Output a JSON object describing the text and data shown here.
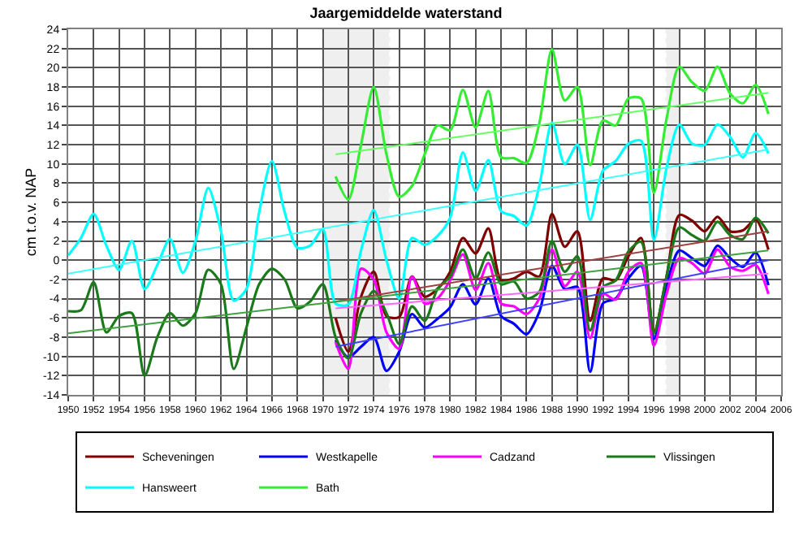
{
  "chart_data": {
    "type": "line",
    "title": "Jaargemiddelde waterstand",
    "ylabel": "cm t.o.v. NAP",
    "xlim": [
      1950,
      2006
    ],
    "xticks": [
      1950,
      1952,
      1954,
      1956,
      1958,
      1960,
      1962,
      1964,
      1966,
      1968,
      1970,
      1972,
      1974,
      1976,
      1978,
      1980,
      1982,
      1984,
      1986,
      1988,
      1990,
      1992,
      1994,
      1996,
      1998,
      2000,
      2002,
      2004,
      2006
    ],
    "ylim": [
      -14,
      24
    ],
    "yticks": [
      -14,
      -12,
      -10,
      -8,
      -6,
      -4,
      -2,
      0,
      2,
      4,
      6,
      8,
      10,
      12,
      14,
      16,
      18,
      20,
      22,
      24
    ],
    "grid": true,
    "legend": "bottom",
    "marker": "none",
    "line_style": "solid",
    "bands": [
      {
        "axis": "x",
        "from": 1970,
        "to": 1975.2,
        "color": "#808080"
      },
      {
        "axis": "x",
        "from": 1997,
        "to": 1998,
        "color": "#808080"
      }
    ],
    "series": [
      {
        "name": "Scheveningen",
        "color": "#800000",
        "x": [
          1971,
          1972,
          1973,
          1974,
          1975,
          1976,
          1977,
          1978,
          1979,
          1980,
          1981,
          1982,
          1983,
          1984,
          1985,
          1986,
          1987,
          1988,
          1989,
          1990,
          1991,
          1992,
          1993,
          1994,
          1995,
          1996,
          1997,
          1998,
          1999,
          2000,
          2001,
          2002,
          2003,
          2004,
          2005
        ],
        "values": [
          -6,
          -9.5,
          -3.8,
          -1.2,
          -5.8,
          -5.9,
          -1.7,
          -3.8,
          -3,
          -1.2,
          2.3,
          0.7,
          3.3,
          -2.1,
          -1.9,
          -1.2,
          -1.7,
          4.8,
          1.4,
          3,
          -6.3,
          -1.9,
          -2.1,
          0.4,
          2.3,
          -7.5,
          -1.7,
          4.7,
          4.1,
          3,
          4.5,
          3,
          3.1,
          4.2,
          1.1
        ]
      },
      {
        "name": "Westkapelle",
        "color": "#0000ff",
        "x": [
          1971,
          1972,
          1973,
          1974,
          1975,
          1976,
          1977,
          1978,
          1979,
          1980,
          1981,
          1982,
          1983,
          1984,
          1985,
          1986,
          1987,
          1988,
          1989,
          1990,
          1991,
          1992,
          1993,
          1994,
          1995,
          1996,
          1997,
          1998,
          1999,
          2000,
          2001,
          2002,
          2003,
          2004,
          2005
        ],
        "values": [
          -8.3,
          -10.1,
          -9,
          -8,
          -11.5,
          -9.5,
          -5.6,
          -7,
          -6.1,
          -4.9,
          -2.5,
          -4.6,
          -1.9,
          -5.8,
          -6.6,
          -7.7,
          -5.4,
          -0.6,
          -3,
          -2.8,
          -11.6,
          -4.5,
          -4,
          -1.9,
          -0.6,
          -8.2,
          -2.6,
          1,
          0.2,
          -0.6,
          1.5,
          0.2,
          -0.7,
          0.8,
          -2.6
        ]
      },
      {
        "name": "Cadzand",
        "color": "#ff00ff",
        "x": [
          1971,
          1972,
          1973,
          1974,
          1975,
          1976,
          1977,
          1978,
          1979,
          1980,
          1981,
          1982,
          1983,
          1984,
          1985,
          1986,
          1987,
          1988,
          1989,
          1990,
          1991,
          1992,
          1993,
          1994,
          1995,
          1996,
          1997,
          1998,
          1999,
          2000,
          2001,
          2002,
          2003,
          2004,
          2005
        ],
        "values": [
          -8.5,
          -11.3,
          -0.9,
          -2,
          -7.5,
          -9.2,
          -1.7,
          -4.5,
          -4,
          -2.1,
          0.6,
          -3.1,
          -0.3,
          -4.5,
          -4.8,
          -5.6,
          -4,
          1.1,
          -2.7,
          -1.2,
          -8.1,
          -3.5,
          -4.1,
          -1.2,
          -0.3,
          -8.9,
          -3.5,
          0.2,
          -0.3,
          -1.4,
          1.1,
          -0.7,
          -1.1,
          -0.5,
          -3.5
        ]
      },
      {
        "name": "Vlissingen",
        "color": "#1a7a1a",
        "x": [
          1950,
          1951,
          1952,
          1953,
          1954,
          1955,
          1956,
          1957,
          1958,
          1959,
          1960,
          1961,
          1962,
          1963,
          1964,
          1965,
          1966,
          1967,
          1968,
          1969,
          1970,
          1971,
          1972,
          1973,
          1974,
          1975,
          1976,
          1977,
          1978,
          1979,
          1980,
          1981,
          1982,
          1983,
          1984,
          1985,
          1986,
          1987,
          1988,
          1989,
          1990,
          1991,
          1992,
          1993,
          1994,
          1995,
          1996,
          1997,
          1998,
          1999,
          2000,
          2001,
          2002,
          2003,
          2004,
          2005
        ],
        "values": [
          -5.3,
          -5.2,
          -2.3,
          -7.5,
          -5.8,
          -5.5,
          -12,
          -8,
          -5.5,
          -6.8,
          -5.5,
          -1,
          -2.5,
          -11.3,
          -7,
          -2.5,
          -0.9,
          -2,
          -5,
          -4.3,
          -2.5,
          -8,
          -10.2,
          -5.5,
          -3.2,
          -5.5,
          -8.7,
          -4.8,
          -6.3,
          -3,
          -1.7,
          1.1,
          -1.9,
          0.8,
          -2.5,
          -2.2,
          -4,
          -3.3,
          2,
          -1.2,
          0.4,
          -7.3,
          -2.8,
          -2.1,
          0.9,
          1.9,
          -7.6,
          -1.7,
          3.4,
          2.6,
          2,
          4,
          2.6,
          2.2,
          4.4,
          2.8
        ]
      },
      {
        "name": "Hansweert",
        "color": "#00ffff",
        "x": [
          1950,
          1951,
          1952,
          1953,
          1954,
          1955,
          1956,
          1957,
          1958,
          1959,
          1960,
          1961,
          1962,
          1963,
          1964,
          1965,
          1966,
          1967,
          1968,
          1969,
          1970,
          1971,
          1972,
          1973,
          1974,
          1975,
          1976,
          1977,
          1978,
          1979,
          1980,
          1981,
          1982,
          1983,
          1984,
          1985,
          1986,
          1987,
          1988,
          1989,
          1990,
          1991,
          1992,
          1993,
          1994,
          1995,
          1996,
          1997,
          1998,
          1999,
          2000,
          2001,
          2002,
          2003,
          2004,
          2005
        ],
        "values": [
          0.5,
          2.3,
          4.8,
          1.5,
          -1,
          2,
          -3,
          -0.5,
          2.2,
          -1.3,
          2,
          7.5,
          3,
          -4.2,
          -3,
          5,
          10.3,
          5,
          1.3,
          1.5,
          3.2,
          -4.5,
          -4.6,
          1,
          5.2,
          0,
          -4,
          2.3,
          1.6,
          2.5,
          4.4,
          11.2,
          7.2,
          10.4,
          5.1,
          4.6,
          3.6,
          7.7,
          14.3,
          10,
          12,
          4.2,
          9.3,
          10.3,
          12.1,
          12.4,
          2.1,
          9.6,
          14.1,
          12.1,
          12,
          14.1,
          12.8,
          10.7,
          13.2,
          11.1
        ]
      },
      {
        "name": "Bath",
        "color": "#33ee33",
        "x": [
          1971,
          1972,
          1973,
          1974,
          1975,
          1976,
          1977,
          1978,
          1979,
          1980,
          1981,
          1982,
          1983,
          1984,
          1985,
          1986,
          1987,
          1988,
          1989,
          1990,
          1991,
          1992,
          1993,
          1994,
          1995,
          1996,
          1997,
          1998,
          1999,
          2000,
          2001,
          2002,
          2003,
          2004,
          2005
        ],
        "values": [
          8.7,
          6.3,
          12,
          18,
          11,
          6.6,
          7.7,
          11,
          14,
          13.5,
          17.7,
          13.8,
          17.6,
          10.7,
          10.6,
          10.1,
          14.2,
          21.9,
          16.6,
          18,
          9.9,
          14.5,
          14,
          16.8,
          16.8,
          7,
          14.7,
          20.1,
          18.5,
          17.6,
          20.1,
          17.3,
          16.3,
          18.2,
          15.2
        ]
      },
      {
        "color": "#a04040",
        "x": [
          1971,
          2005
        ],
        "values": [
          -4.3,
          3.0
        ]
      },
      {
        "color": "#4040ff",
        "x": [
          1971,
          2005
        ],
        "values": [
          -9,
          0.0
        ]
      },
      {
        "color": "#ff66ff",
        "x": [
          1971,
          2005
        ],
        "values": [
          -5,
          -1.4
        ]
      },
      {
        "color": "#40a040",
        "x": [
          1950,
          2005
        ],
        "values": [
          -7.6,
          1.0
        ]
      },
      {
        "color": "#40ffff",
        "x": [
          1950,
          2005
        ],
        "values": [
          -1.4,
          11.5
        ]
      },
      {
        "color": "#66ff66",
        "x": [
          1971,
          2005
        ],
        "values": [
          11,
          17.4
        ]
      }
    ]
  }
}
